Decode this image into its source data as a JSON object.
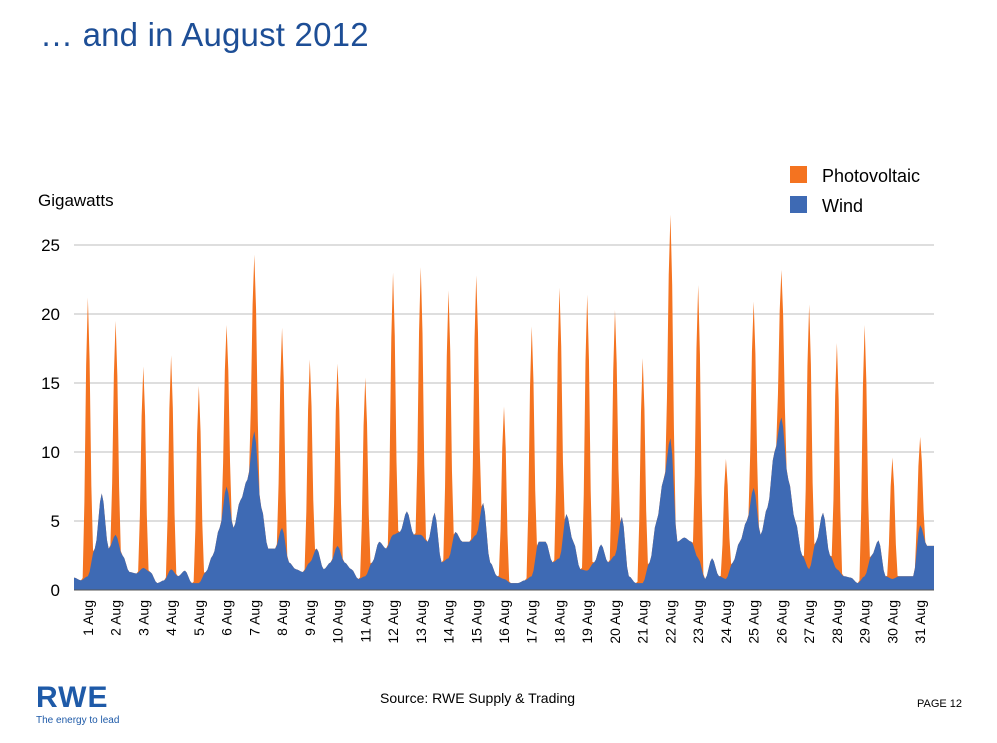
{
  "title": "… and in August 2012",
  "logo": {
    "word": "RWE",
    "tagline": "The energy to lead"
  },
  "source": "Source: RWE Supply & Trading",
  "page_number": "PAGE 12",
  "colors": {
    "title": "#1d4e96",
    "photovoltaic": "#f47320",
    "wind": "#3e6ab4",
    "grid": "#bdbdbd",
    "logo": "#1e5aa8"
  },
  "chart_data": {
    "type": "area",
    "stacked": true,
    "ylabel": "Gigawatts",
    "xlabel": "",
    "ylim": [
      0,
      25
    ],
    "yticks": [
      0,
      5,
      10,
      15,
      20,
      25
    ],
    "grid": true,
    "legend_position": "top-right",
    "categories": [
      "1 Aug",
      "2 Aug",
      "3 Aug",
      "4 Aug",
      "5 Aug",
      "6 Aug",
      "7 Aug",
      "8 Aug",
      "9 Aug",
      "10 Aug",
      "11 Aug",
      "12 Aug",
      "13 Aug",
      "14 Aug",
      "15 Aug",
      "16 Aug",
      "17 Aug",
      "18 Aug",
      "19 Aug",
      "20 Aug",
      "21 Aug",
      "22 Aug",
      "23 Aug",
      "24 Aug",
      "25 Aug",
      "26 Aug",
      "27 Aug",
      "28 Aug",
      "29 Aug",
      "30 Aug",
      "31 Aug"
    ],
    "series": [
      {
        "name": "Photovoltaic",
        "description": "daily midday peak of total generation (photovoltaic stacked on wind), GW",
        "daily_peak_total": [
          21.2,
          19.5,
          16.2,
          17.0,
          14.8,
          19.2,
          24.3,
          19.0,
          16.7,
          16.4,
          15.4,
          23.0,
          23.4,
          21.7,
          22.8,
          13.3,
          19.1,
          21.9,
          21.4,
          20.3,
          16.8,
          27.2,
          22.1,
          9.5,
          20.9,
          23.2,
          20.7,
          17.9,
          19.2,
          9.6,
          11.1
        ]
      },
      {
        "name": "Wind",
        "description": "approximate daily wind profile, GW: [night(00h), morning(06h), midday(12h), evening(18h)]",
        "profile": [
          [
            0.9,
            0.7,
            1.0,
            3.0
          ],
          [
            7.0,
            3.0,
            4.0,
            2.5
          ],
          [
            1.3,
            1.2,
            1.6,
            1.3
          ],
          [
            0.5,
            0.7,
            1.5,
            1.0
          ],
          [
            1.4,
            0.5,
            0.5,
            1.3
          ],
          [
            2.5,
            4.5,
            7.5,
            4.5
          ],
          [
            6.5,
            8.0,
            11.5,
            6.0
          ],
          [
            3.0,
            3.0,
            4.5,
            2.0
          ],
          [
            1.5,
            1.3,
            2.0,
            3.0
          ],
          [
            1.5,
            2.0,
            3.2,
            2.0
          ],
          [
            1.5,
            0.8,
            1.0,
            2.0
          ],
          [
            3.5,
            3.0,
            4.0,
            4.2
          ],
          [
            5.7,
            4.0,
            4.0,
            3.5
          ],
          [
            5.6,
            2.0,
            2.3,
            4.2
          ],
          [
            3.5,
            3.5,
            4.0,
            6.3
          ],
          [
            2.0,
            1.0,
            0.8,
            0.5
          ],
          [
            0.5,
            0.7,
            1.0,
            3.5
          ],
          [
            3.5,
            2.0,
            2.3,
            5.5
          ],
          [
            3.5,
            1.5,
            1.4,
            2.0
          ],
          [
            3.3,
            2.0,
            2.5,
            5.3
          ],
          [
            1.0,
            0.5,
            0.5,
            2.0
          ],
          [
            5.0,
            8.0,
            11.0,
            3.5
          ],
          [
            3.8,
            3.5,
            2.3,
            0.8
          ],
          [
            2.3,
            1.0,
            0.8,
            2.0
          ],
          [
            3.5,
            5.0,
            7.4,
            4.0
          ],
          [
            6.0,
            10.0,
            12.5,
            8.0
          ],
          [
            5.0,
            2.5,
            1.5,
            3.5
          ],
          [
            5.6,
            2.5,
            1.5,
            1.0
          ],
          [
            0.9,
            0.5,
            1.0,
            2.5
          ],
          [
            3.6,
            1.0,
            0.8,
            1.0
          ],
          [
            1.0,
            1.0,
            4.7,
            3.2
          ]
        ]
      }
    ]
  }
}
